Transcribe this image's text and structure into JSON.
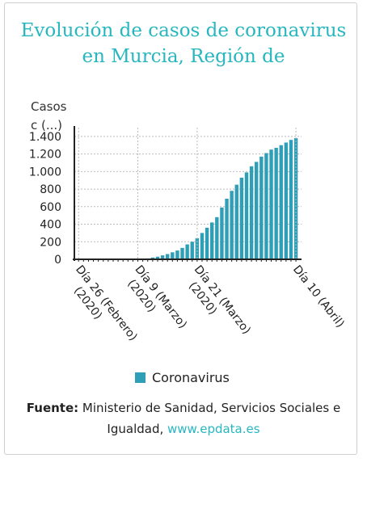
{
  "title_line1": "Evolución de casos de coronavirus",
  "title_line2": "en Murcia, Región de",
  "colors": {
    "title": "#28b6bf",
    "bar": "#2f9fb8",
    "axis": "#222222",
    "grid": "#bbbbbb"
  },
  "source": {
    "label": "Fuente:",
    "text": " Ministerio de Sanidad, Servicios Sociales e Igualdad, ",
    "link": "www.epdata.es"
  },
  "chart_data": {
    "type": "bar",
    "ylabel_line1": "Casos",
    "ylabel_line2": "c (...)",
    "ylim": [
      0,
      1500
    ],
    "yticks": [
      0,
      200,
      400,
      600,
      800,
      1000,
      1200,
      1400
    ],
    "ytick_labels": [
      "0",
      "200",
      "400",
      "600",
      "800",
      "1.000",
      "1.200",
      "1.400"
    ],
    "grid": true,
    "legend": "bottom",
    "xtick_labels": [
      {
        "label": "Día 26 (Febrero) (2020)",
        "date": "2020-02-26"
      },
      {
        "label": "Día 9 (Marzo) (2020)",
        "date": "2020-03-09"
      },
      {
        "label": "Día 21 (Marzo) (2020)",
        "date": "2020-03-21"
      },
      {
        "label": "Día 10 (Abril)",
        "date": "2020-04-10"
      }
    ],
    "series": [
      {
        "name": "Coronavirus",
        "dates": [
          "2020-02-26",
          "2020-02-27",
          "2020-02-28",
          "2020-02-29",
          "2020-03-01",
          "2020-03-02",
          "2020-03-03",
          "2020-03-04",
          "2020-03-05",
          "2020-03-06",
          "2020-03-07",
          "2020-03-08",
          "2020-03-09",
          "2020-03-10",
          "2020-03-11",
          "2020-03-12",
          "2020-03-13",
          "2020-03-14",
          "2020-03-15",
          "2020-03-16",
          "2020-03-17",
          "2020-03-18",
          "2020-03-19",
          "2020-03-20",
          "2020-03-21",
          "2020-03-22",
          "2020-03-23",
          "2020-03-24",
          "2020-03-25",
          "2020-03-26",
          "2020-03-27",
          "2020-03-28",
          "2020-03-29",
          "2020-03-30",
          "2020-03-31",
          "2020-04-01",
          "2020-04-02",
          "2020-04-03",
          "2020-04-04",
          "2020-04-05",
          "2020-04-06",
          "2020-04-07",
          "2020-04-08",
          "2020-04-09",
          "2020-04-10"
        ],
        "values": [
          0,
          0,
          0,
          0,
          0,
          0,
          0,
          0,
          0,
          0,
          0,
          0,
          2,
          5,
          10,
          20,
          30,
          45,
          60,
          80,
          100,
          130,
          170,
          200,
          240,
          300,
          360,
          420,
          480,
          590,
          690,
          780,
          850,
          930,
          990,
          1060,
          1110,
          1170,
          1210,
          1250,
          1270,
          1300,
          1330,
          1360,
          1380
        ]
      }
    ]
  }
}
